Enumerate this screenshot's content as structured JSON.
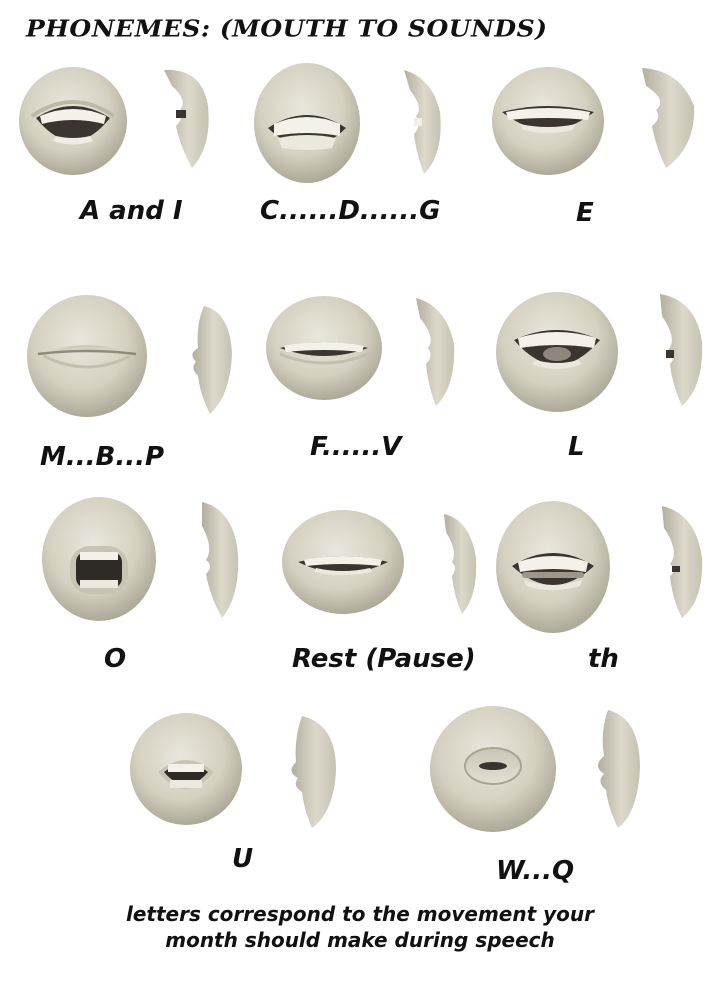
{
  "title": "Phonemes: (Mouth to Sounds)",
  "phonemes": [
    {
      "label": "A and I"
    },
    {
      "label": "C......D......G"
    },
    {
      "label": "E"
    },
    {
      "label": "M...B...P"
    },
    {
      "label": "F......V"
    },
    {
      "label": "L"
    },
    {
      "label": "O"
    },
    {
      "label": "Rest (Pause)"
    },
    {
      "label": "th"
    },
    {
      "label": "U"
    },
    {
      "label": "W...Q"
    }
  ],
  "footer": {
    "line1": "letters correspond to the movement your",
    "line2": "month should make during speech"
  },
  "colors": {
    "skin": "#d6d3c3",
    "skin_shadow": "#a9a596",
    "teeth": "#f4f2ea",
    "mouth_dark": "#2e2b26"
  }
}
